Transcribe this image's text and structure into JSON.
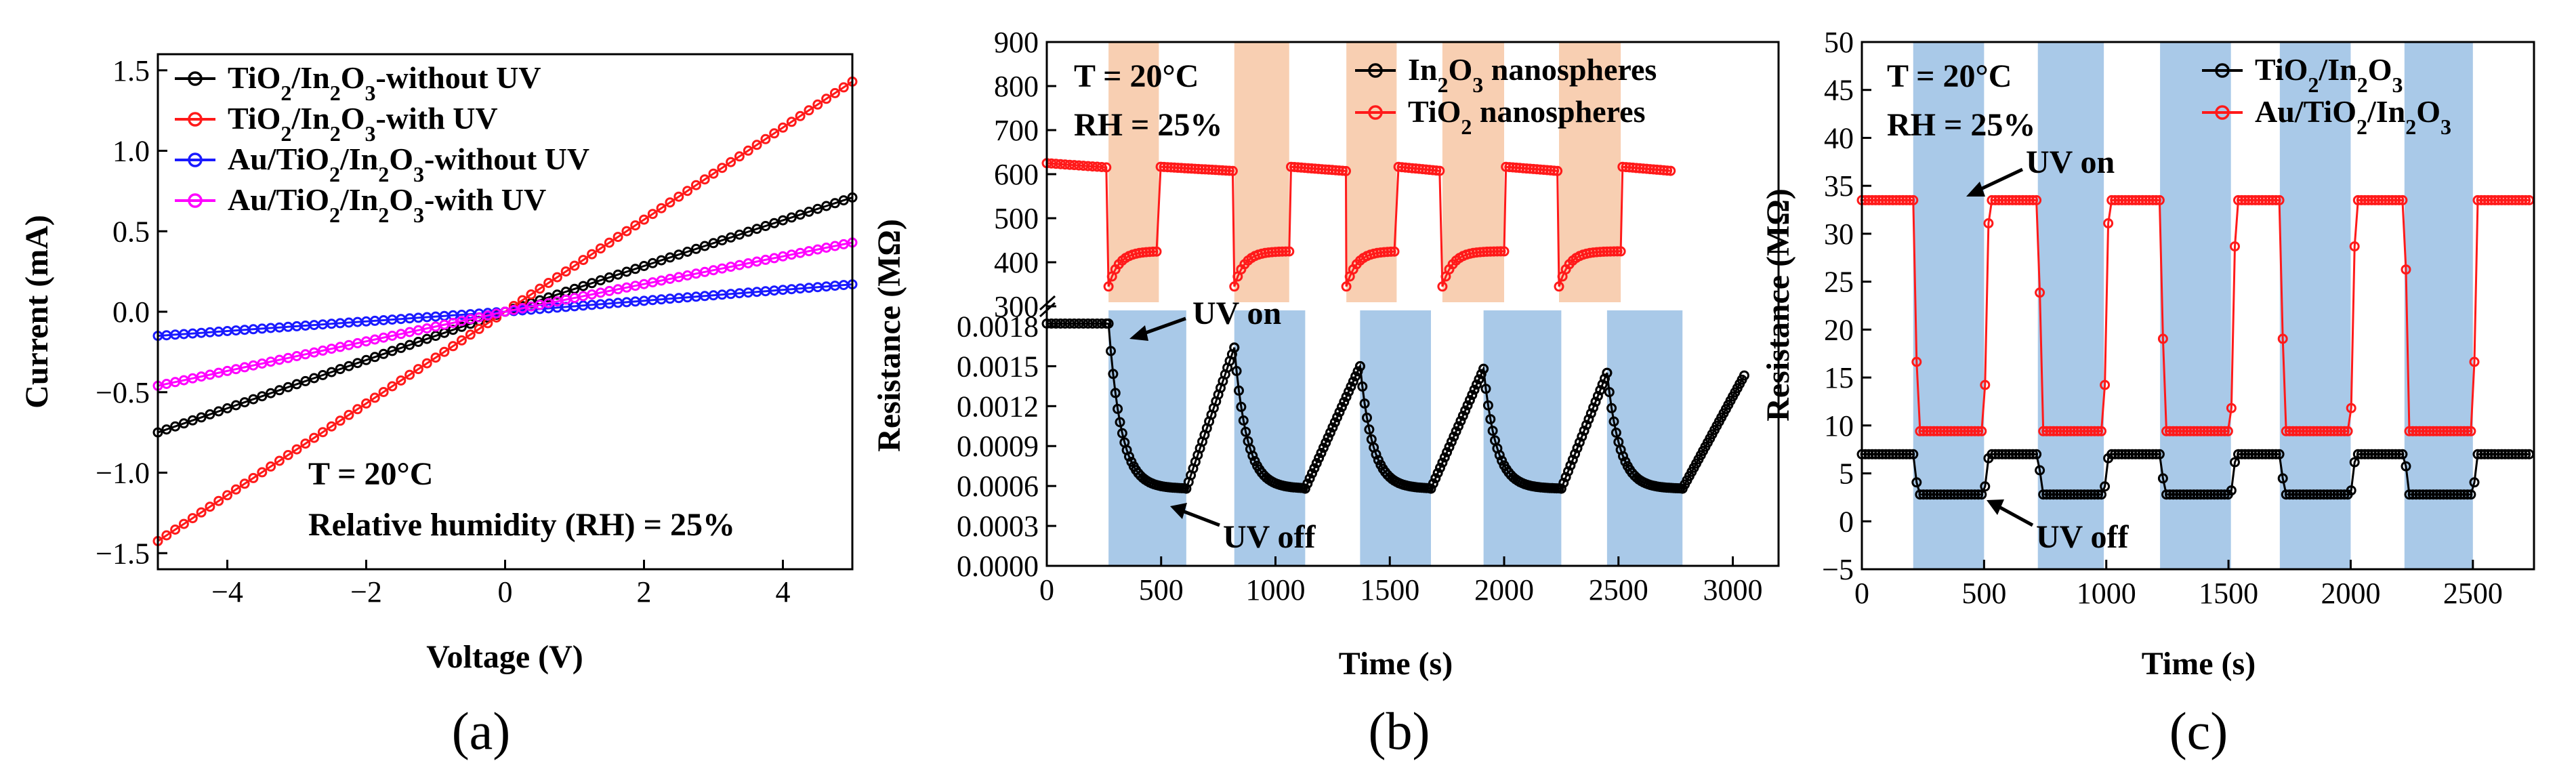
{
  "colors": {
    "black": "#000000",
    "red": "#ff1a1a",
    "blue": "#1a1aff",
    "magenta": "#ff00ff",
    "uv_blue": "#a9c9e8",
    "uv_peach": "#f8cfb2"
  },
  "panels": {
    "a": {
      "label": "(a)",
      "ylabel": "Current (mA)",
      "xlabel": "Voltage (V)",
      "ann1": "T = 20°C",
      "ann2": "Relative humidity (RH) = 25%"
    },
    "b": {
      "label": "(b)",
      "ylabel": "Resistance (MΩ)",
      "xlabel": "Time (s)",
      "ann1": "T = 20°C",
      "ann2": "RH = 25%",
      "uv_on": "UV on",
      "uv_off": "UV off"
    },
    "c": {
      "label": "(c)",
      "ylabel": "Resistance (MΩ)",
      "xlabel": "Time (s)",
      "ann1": "T = 20°C",
      "ann2": "RH = 25%",
      "uv_on": "UV on",
      "uv_off": "UV off"
    }
  },
  "chart_data": [
    {
      "id": "a",
      "type": "line",
      "title": "",
      "xlabel": "Voltage (V)",
      "ylabel": "Current (mA)",
      "xlim": [
        -5,
        5
      ],
      "ylim": [
        -1.6,
        1.6
      ],
      "xticks": [
        -4,
        -2,
        0,
        2,
        4
      ],
      "xticklabels": [
        "−4",
        "−2",
        "0",
        "2",
        "4"
      ],
      "yticks": [
        -1.5,
        -1.0,
        -0.5,
        0.0,
        0.5,
        1.0,
        1.5
      ],
      "yticklabels": [
        "−1.5",
        "−1.0",
        "−0.5",
        "0.0",
        "0.5",
        "1.0",
        "1.5"
      ],
      "legend_position": "top-left",
      "series": [
        {
          "name": "TiO2/In2O3-without UV",
          "legend": [
            "TiO",
            "2",
            "/In",
            "2",
            "O",
            "3",
            "-without UV"
          ],
          "color": "#000000",
          "slope_pos": 0.142,
          "slope_neg": 0.15,
          "curv": 0.0
        },
        {
          "name": "TiO2/In2O3-with UV",
          "legend": [
            "TiO",
            "2",
            "/In",
            "2",
            "O",
            "3",
            "-with UV"
          ],
          "color": "#ff1a1a",
          "slope_pos": 0.286,
          "slope_neg": 0.285,
          "curv": 0.0
        },
        {
          "name": "Au/TiO2/In2O3-without UV",
          "legend": [
            "Au/TiO",
            "2",
            "/In",
            "2",
            "O",
            "3",
            "-without UV"
          ],
          "color": "#1a1aff",
          "slope_pos": 0.034,
          "slope_neg": 0.03,
          "curv": 0.0
        },
        {
          "name": "Au/TiO2/In2O3-with UV",
          "legend": [
            "Au/TiO",
            "2",
            "/In",
            "2",
            "O",
            "3",
            "-with UV"
          ],
          "color": "#ff00ff",
          "slope_pos": 0.086,
          "slope_neg": 0.092,
          "curv": 0.0
        }
      ]
    },
    {
      "id": "b",
      "type": "line",
      "title": "",
      "xlabel": "Time (s)",
      "ylabel": "Resistance (MΩ)",
      "xlim": [
        0,
        3200
      ],
      "xticks": [
        0,
        500,
        1000,
        1500,
        2000,
        2500,
        3000
      ],
      "xticklabels": [
        "0",
        "500",
        "1000",
        "1500",
        "2000",
        "2500",
        "3000"
      ],
      "upper_ylim": [
        300,
        900
      ],
      "upper_yticks": [
        300,
        400,
        500,
        600,
        700,
        800,
        900
      ],
      "upper_yticklabels": [
        "300",
        "400",
        "500",
        "600",
        "700",
        "800",
        "900"
      ],
      "lower_ylim": [
        0,
        0.00195
      ],
      "lower_yticks": [
        0,
        0.0003,
        0.0006,
        0.0009,
        0.0012,
        0.0015,
        0.0018
      ],
      "lower_yticklabels": [
        "0.0000",
        "0.0003",
        "0.0006",
        "0.0009",
        "0.0012",
        "0.0015",
        "0.0018"
      ],
      "uv_on_intervals_upper": [
        [
          270,
          490
        ],
        [
          820,
          1060
        ],
        [
          1310,
          1530
        ],
        [
          1730,
          2000
        ],
        [
          2240,
          2510
        ]
      ],
      "uv_on_intervals_lower": [
        [
          270,
          610
        ],
        [
          820,
          1130
        ],
        [
          1370,
          1680
        ],
        [
          1910,
          2250
        ],
        [
          2450,
          2780
        ]
      ],
      "legend_position": "top-right",
      "series": [
        {
          "name": "In2O3 nanospheres",
          "legend": [
            "In",
            "2",
            "O",
            "3",
            " nanospheres"
          ],
          "color": "#000000",
          "base": 0.00182,
          "low": 0.00058,
          "on_times": [
            270,
            820,
            1370,
            1910,
            2450
          ],
          "off_times": [
            610,
            1130,
            1680,
            2250,
            2780
          ],
          "rec_peaks": [
            0.00164,
            0.0015,
            0.00148,
            0.00145,
            0.00143
          ],
          "end_time": 3050
        },
        {
          "name": "TiO2 nanospheres",
          "legend": [
            "TiO",
            "2",
            " nanospheres"
          ],
          "color": "#ff1a1a",
          "base": 625,
          "dark": 615,
          "low": 345,
          "uv_end": 425,
          "intervals": [
            [
              270,
              490
            ],
            [
              820,
              1060
            ],
            [
              1310,
              1530
            ],
            [
              1730,
              2000
            ],
            [
              2240,
              2510
            ]
          ],
          "end_time": 2740
        }
      ]
    },
    {
      "id": "c",
      "type": "line",
      "title": "",
      "xlabel": "Time (s)",
      "ylabel": "Resistance (MΩ)",
      "xlim": [
        0,
        2750
      ],
      "ylim": [
        -5,
        50
      ],
      "xticks": [
        0,
        500,
        1000,
        1500,
        2000,
        2500
      ],
      "xticklabels": [
        "0",
        "500",
        "1000",
        "1500",
        "2000",
        "2500"
      ],
      "yticks": [
        -5,
        0,
        5,
        10,
        15,
        20,
        25,
        30,
        35,
        40,
        45,
        50
      ],
      "yticklabels": [
        "−5",
        "0",
        "5",
        "10",
        "15",
        "20",
        "25",
        "30",
        "35",
        "40",
        "45",
        "50"
      ],
      "uv_on_intervals": [
        [
          210,
          500
        ],
        [
          720,
          990
        ],
        [
          1220,
          1510
        ],
        [
          1710,
          2000
        ],
        [
          2220,
          2500
        ]
      ],
      "legend_position": "top-right",
      "series": [
        {
          "name": "TiO2/In2O3",
          "legend": [
            "TiO",
            "2",
            "/In",
            "2",
            "O",
            "3"
          ],
          "color": "#000000",
          "dark": 7.0,
          "uv": 2.8,
          "end_time": 2740
        },
        {
          "name": "Au/TiO2/In2O3",
          "legend": [
            "Au/TiO",
            "2",
            "/In",
            "2",
            "O",
            "3"
          ],
          "color": "#ff1a1a",
          "dark": 33.5,
          "uv": 9.4,
          "end_time": 2740
        }
      ]
    }
  ]
}
